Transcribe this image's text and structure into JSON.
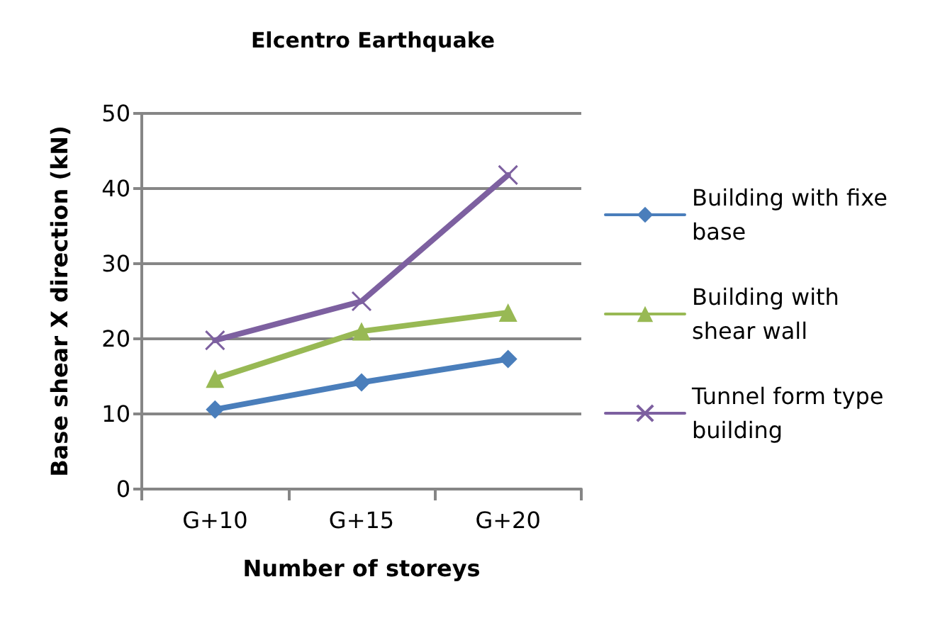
{
  "chart_data": {
    "type": "line",
    "title": "Elcentro Earthquake",
    "xlabel": "Number of storeys",
    "ylabel": "Base shear X direction (kN)",
    "categories": [
      "G+10",
      "G+15",
      "G+20"
    ],
    "series": [
      {
        "name": "Building with fixe base",
        "color": "#4a7ebb",
        "marker": "diamond",
        "values": [
          10.6,
          14.2,
          17.3
        ]
      },
      {
        "name": "Building with shear wall",
        "color": "#98b954",
        "marker": "triangle",
        "values": [
          14.7,
          21.0,
          23.5
        ]
      },
      {
        "name": "Tunnel form type building",
        "color": "#7d60a0",
        "marker": "cross",
        "values": [
          19.8,
          25.0,
          41.8
        ]
      }
    ],
    "ylim": [
      0,
      50
    ],
    "yticks": [
      0,
      10,
      20,
      30,
      40,
      50
    ],
    "grid": "y",
    "legend": "right"
  }
}
